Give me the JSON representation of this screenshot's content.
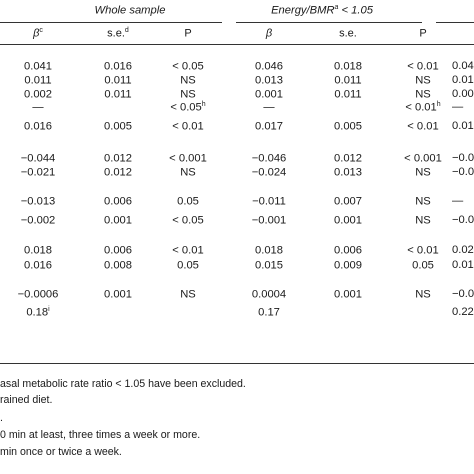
{
  "header": {
    "groups": [
      {
        "label": "Whole sample",
        "sup": ""
      },
      {
        "label": "Energy/BMR",
        "sup": "a",
        "tail": " < 1.05"
      }
    ],
    "columns": [
      {
        "label": "β",
        "sup": "c",
        "italic": true
      },
      {
        "label": "s.e.",
        "sup": "d",
        "italic": false
      },
      {
        "label": "P",
        "sup": "",
        "italic": false
      },
      {
        "label": "β",
        "sup": "",
        "italic": true
      },
      {
        "label": "s.e.",
        "sup": "",
        "italic": false
      },
      {
        "label": "P",
        "sup": "",
        "italic": false
      }
    ]
  },
  "rows": [
    {
      "cells": [
        [
          "0.041",
          ""
        ],
        [
          "0.016",
          ""
        ],
        [
          "< 0.05",
          ""
        ],
        [
          "0.046",
          ""
        ],
        [
          "0.018",
          ""
        ],
        [
          "< 0.01",
          ""
        ]
      ],
      "edge": "0.04"
    },
    {
      "cells": [
        [
          "0.011",
          ""
        ],
        [
          "0.011",
          ""
        ],
        [
          "NS",
          ""
        ],
        [
          "0.013",
          ""
        ],
        [
          "0.011",
          ""
        ],
        [
          "NS",
          ""
        ]
      ],
      "edge": "0.01"
    },
    {
      "cells": [
        [
          "0.002",
          ""
        ],
        [
          "0.011",
          ""
        ],
        [
          "NS",
          ""
        ],
        [
          "0.001",
          ""
        ],
        [
          "0.011",
          ""
        ],
        [
          "NS",
          ""
        ]
      ],
      "edge": "0.00"
    },
    {
      "cells": [
        [
          "—",
          ""
        ],
        [
          "",
          ""
        ],
        [
          "< 0.05",
          "h"
        ],
        [
          "—",
          ""
        ],
        [
          "",
          ""
        ],
        [
          "< 0.01",
          "h"
        ]
      ],
      "edge": "—"
    },
    {
      "cells": [
        [
          "0.016",
          ""
        ],
        [
          "0.005",
          ""
        ],
        [
          "< 0.01",
          ""
        ],
        [
          "0.017",
          ""
        ],
        [
          "0.005",
          ""
        ],
        [
          "< 0.01",
          ""
        ]
      ],
      "edge": "0.01"
    },
    {
      "cells": [
        [
          "−0.044",
          ""
        ],
        [
          "0.012",
          ""
        ],
        [
          "< 0.001",
          ""
        ],
        [
          "−0.046",
          ""
        ],
        [
          "0.012",
          ""
        ],
        [
          "< 0.001",
          ""
        ]
      ],
      "edge": "−0.04"
    },
    {
      "cells": [
        [
          "−0.021",
          ""
        ],
        [
          "0.012",
          ""
        ],
        [
          "NS",
          ""
        ],
        [
          "−0.024",
          ""
        ],
        [
          "0.013",
          ""
        ],
        [
          "NS",
          ""
        ]
      ],
      "edge": "−0.01"
    },
    {
      "cells": [
        [
          "−0.013",
          ""
        ],
        [
          "0.006",
          ""
        ],
        [
          "0.05",
          ""
        ],
        [
          "−0.011",
          ""
        ],
        [
          "0.007",
          ""
        ],
        [
          "NS",
          ""
        ]
      ],
      "edge": "—"
    },
    {
      "cells": [
        [
          "−0.002",
          ""
        ],
        [
          "0.001",
          ""
        ],
        [
          "< 0.05",
          ""
        ],
        [
          "−0.001",
          ""
        ],
        [
          "0.001",
          ""
        ],
        [
          "NS",
          ""
        ]
      ],
      "edge": "−0.00"
    },
    {
      "cells": [
        [
          "0.018",
          ""
        ],
        [
          "0.006",
          ""
        ],
        [
          "< 0.01",
          ""
        ],
        [
          "0.018",
          ""
        ],
        [
          "0.006",
          ""
        ],
        [
          "< 0.01",
          ""
        ]
      ],
      "edge": "0.02"
    },
    {
      "cells": [
        [
          "0.016",
          ""
        ],
        [
          "0.008",
          ""
        ],
        [
          "0.05",
          ""
        ],
        [
          "0.015",
          ""
        ],
        [
          "0.009",
          ""
        ],
        [
          "0.05",
          ""
        ]
      ],
      "edge": "0.01"
    },
    {
      "cells": [
        [
          "−0.0006",
          ""
        ],
        [
          "0.001",
          ""
        ],
        [
          "NS",
          ""
        ],
        [
          "0.0004",
          ""
        ],
        [
          "0.001",
          ""
        ],
        [
          "NS",
          ""
        ]
      ],
      "edge": "−0.00"
    },
    {
      "cells": [
        [
          "0.18",
          "i"
        ],
        [
          "",
          ""
        ],
        [
          "",
          ""
        ],
        [
          "0.17",
          ""
        ],
        [
          "",
          ""
        ],
        [
          "",
          ""
        ]
      ],
      "edge": "0.22"
    }
  ],
  "footnotes": [
    "asal metabolic rate ratio < 1.05 have been excluded.",
    "rained diet.",
    ".",
    "0 min at least, three times a week or more.",
    " min once or twice a week."
  ]
}
